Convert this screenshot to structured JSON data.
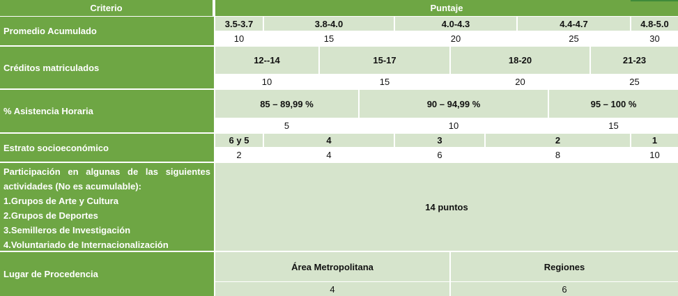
{
  "header": {
    "criterio": "Criterio",
    "puntaje": "Puntaje"
  },
  "promedio": {
    "label": "Promedio Acumulado",
    "ranges": [
      "3.5-3.7",
      "3.8-4.0",
      "4.0-4.3",
      "4.4-4.7",
      "4.8-5.0"
    ],
    "points": [
      "10",
      "15",
      "20",
      "25",
      "30"
    ]
  },
  "creditos": {
    "label": "Créditos matriculados",
    "ranges": [
      "12--14",
      "15-17",
      "18-20",
      "21-23"
    ],
    "points": [
      "10",
      "15",
      "20",
      "25"
    ]
  },
  "asistencia": {
    "label": "% Asistencia Horaria",
    "ranges": [
      "85 – 89,99 %",
      "90 – 94,99 %",
      "95 – 100 %"
    ],
    "points": [
      "5",
      "10",
      "15"
    ]
  },
  "estrato": {
    "label": "Estrato socioeconómico",
    "ranges": [
      "6 y 5",
      "4",
      "3",
      "2",
      "1"
    ],
    "points": [
      "2",
      "4",
      "6",
      "8",
      "10"
    ]
  },
  "participacion": {
    "line1": "Participación en algunas de las siguientes",
    "line2": "actividades (No es acumulable):",
    "items": [
      "1.Grupos de Arte y Cultura",
      "2.Grupos de Deportes",
      "3.Semilleros de Investigación",
      "4.Voluntariado de Internacionalización"
    ],
    "points": "14 puntos"
  },
  "lugar": {
    "label": "Lugar de Procedencia",
    "ranges": [
      "Área Metropolitana",
      "Regiones"
    ],
    "points": [
      "4",
      "6"
    ]
  }
}
